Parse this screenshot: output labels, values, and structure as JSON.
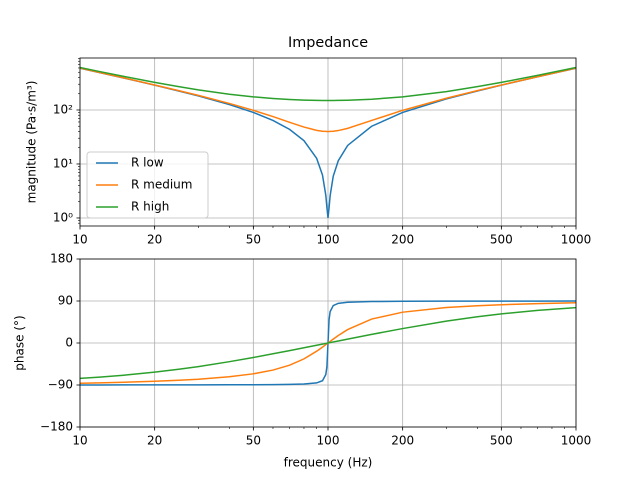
{
  "chart_data": [
    {
      "type": "line",
      "title": "Impedance",
      "ylabel": "magnitude (Pa·s/m³)",
      "xscale": "log",
      "yscale": "log",
      "grid": true,
      "legend": "lower left",
      "x": [
        10,
        12,
        15,
        20,
        25,
        30,
        40,
        50,
        60,
        70,
        80,
        90,
        95,
        98,
        99,
        100,
        101,
        102,
        105,
        110,
        120,
        150,
        200,
        300,
        400,
        500,
        700,
        1000
      ],
      "xlim": [
        10,
        1000
      ],
      "xticks": [
        10,
        20,
        50,
        100,
        200,
        500,
        1000
      ],
      "ylim": [
        0.71,
        918
      ],
      "yticks": [
        {
          "value": 1,
          "label": "10⁰"
        },
        {
          "value": 10,
          "label": "10¹"
        },
        {
          "value": 100,
          "label": "10²"
        }
      ],
      "series": [
        {
          "name": "R low",
          "color": "#1f77b4",
          "values": [
            594,
            492.8,
            391,
            288,
            225,
            182,
            126,
            90,
            64,
            43.7,
            27,
            12.71,
            6.24,
            2.62,
            1.56,
            1,
            1.55,
            2.58,
            5.94,
            11.49,
            22.02,
            50.01,
            90.01,
            160,
            225,
            288,
            411.4,
            594
          ]
        },
        {
          "name": "R medium",
          "color": "#ff7f0e",
          "values": [
            595.3,
            494.4,
            393,
            290.8,
            228.5,
            186.3,
            132.2,
            98.5,
            75.5,
            59.2,
            48.3,
            41.96,
            40.47,
            40.07,
            40.02,
            40,
            40.02,
            40.07,
            40.43,
            41.6,
            45.65,
            64,
            98.5,
            164.9,
            228.5,
            290.8,
            413.3,
            595.3
          ]
        },
        {
          "name": "R high",
          "color": "#2ca02c",
          "values": [
            612.6,
            515.1,
            418.8,
            324.7,
            270.4,
            235.8,
            195.9,
            174.9,
            163.1,
            156.2,
            152.4,
            150.5,
            150.13,
            150.02,
            150,
            150,
            150,
            150.02,
            150.11,
            150.44,
            151.6,
            158.1,
            174.9,
            219.3,
            270.4,
            324.7,
            437.9,
            612.6
          ]
        }
      ]
    },
    {
      "type": "line",
      "ylabel": "phase (°)",
      "xlabel": "frequency (Hz)",
      "xscale": "log",
      "yscale": "linear",
      "grid": true,
      "x": [
        10,
        12,
        15,
        20,
        25,
        30,
        40,
        50,
        60,
        70,
        80,
        90,
        95,
        98,
        99,
        100,
        101,
        102,
        105,
        110,
        120,
        150,
        200,
        300,
        400,
        500,
        700,
        1000
      ],
      "xlim": [
        10,
        1000
      ],
      "xticks": [
        10,
        20,
        50,
        100,
        200,
        500,
        1000
      ],
      "ylim": [
        -180,
        180
      ],
      "yticks": [
        {
          "value": -180,
          "label": "−180"
        },
        {
          "value": -90,
          "label": "−90"
        },
        0,
        90,
        180
      ],
      "series": [
        {
          "color": "#1f77b4",
          "values": [
            -89.9,
            -89.9,
            -89.85,
            -89.8,
            -89.75,
            -89.69,
            -89.55,
            -89.36,
            -89.1,
            -88.69,
            -87.88,
            -85.49,
            -80.8,
            -67.5,
            -50.4,
            0,
            50,
            67.2,
            80.3,
            85,
            87.4,
            88.85,
            89.36,
            89.64,
            89.75,
            89.8,
            89.86,
            89.9
          ]
        },
        {
          "color": "#ff7f0e",
          "values": [
            -86.15,
            -85.36,
            -84.16,
            -82.09,
            -79.92,
            -77.6,
            -72.39,
            -66.04,
            -57.99,
            -47.53,
            -34.02,
            -17.57,
            -8.75,
            -3.46,
            -1.73,
            0,
            1.7,
            3.41,
            8.33,
            15.97,
            28.81,
            51.34,
            66.04,
            75.96,
            79.92,
            82.09,
            84.45,
            86.15
          ]
        },
        {
          "color": "#2ca02c",
          "values": [
            -75.83,
            -73.07,
            -69,
            -62.49,
            -56.31,
            -50.5,
            -40.03,
            -30.96,
            -23.11,
            -16.24,
            -10.2,
            -4.83,
            -2.35,
            -0.92,
            -0.46,
            0,
            0.45,
            0.91,
            2.24,
            4.37,
            8.34,
            18.43,
            30.96,
            46.85,
            56.31,
            62.49,
            69.97,
            75.83
          ]
        }
      ]
    }
  ]
}
